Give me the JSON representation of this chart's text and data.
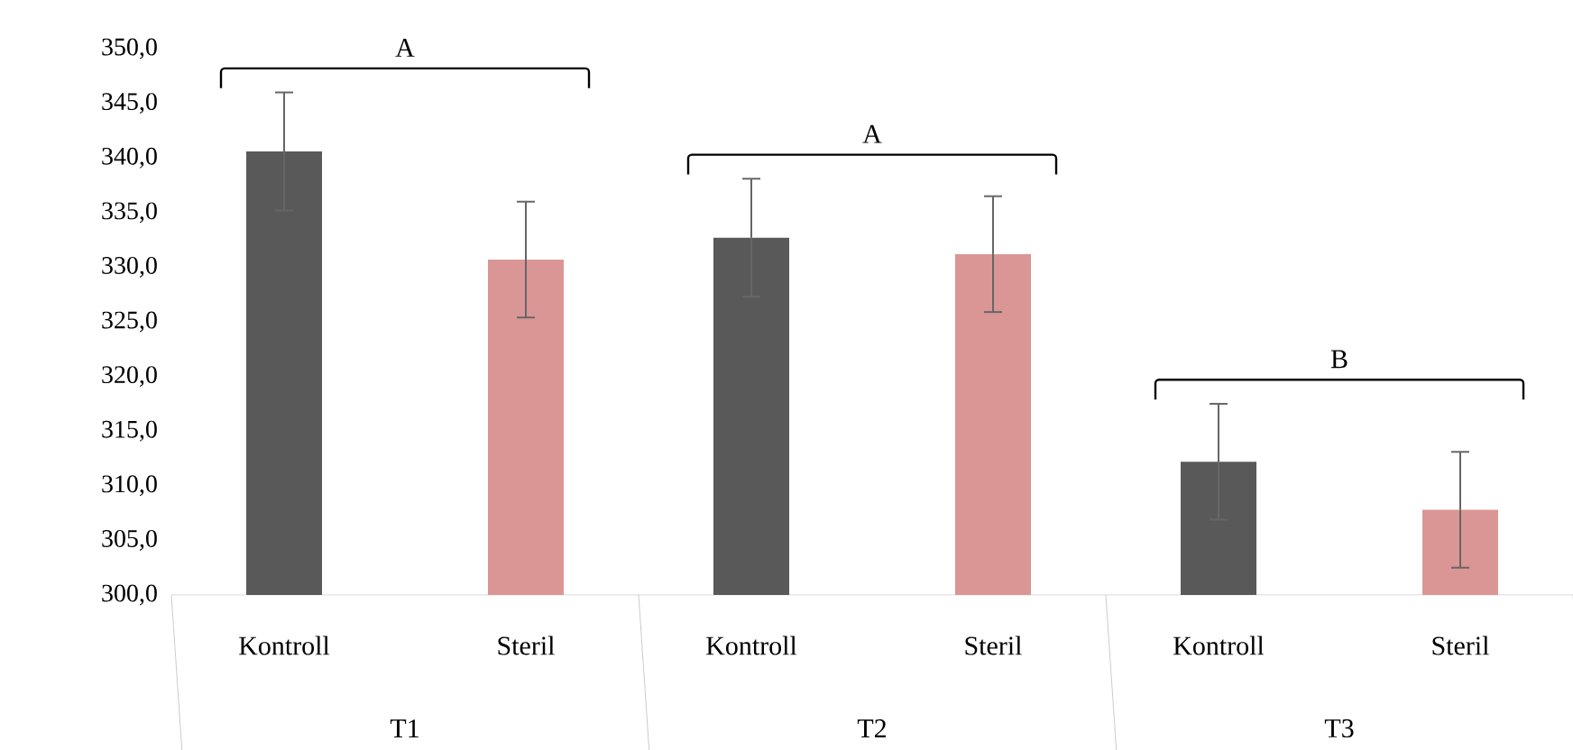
{
  "chart_data": {
    "type": "bar",
    "categories": [
      "T1",
      "T2",
      "T3"
    ],
    "series": [
      {
        "name": "Kontroll",
        "color": "#595959",
        "values": [
          340.6,
          332.7,
          312.2
        ],
        "errors": [
          5.4,
          5.4,
          5.3
        ]
      },
      {
        "name": "Steril",
        "color": "#da9694",
        "values": [
          330.7,
          331.2,
          307.8
        ],
        "errors": [
          5.3,
          5.3,
          5.3
        ]
      }
    ],
    "ylim": [
      300,
      350
    ],
    "yticks": [
      {
        "value": 300,
        "label": "300,0"
      },
      {
        "value": 305,
        "label": "305,0"
      },
      {
        "value": 310,
        "label": "310,0"
      },
      {
        "value": 315,
        "label": "315,0"
      },
      {
        "value": 320,
        "label": "320,0"
      },
      {
        "value": 325,
        "label": "325,0"
      },
      {
        "value": 330,
        "label": "330,0"
      },
      {
        "value": 335,
        "label": "335,0"
      },
      {
        "value": 340,
        "label": "340,0"
      },
      {
        "value": 345,
        "label": "345,0"
      },
      {
        "value": 350,
        "label": "350,0"
      }
    ],
    "annotations": [
      "A",
      "A",
      "B"
    ],
    "grid": false,
    "legend": false
  }
}
